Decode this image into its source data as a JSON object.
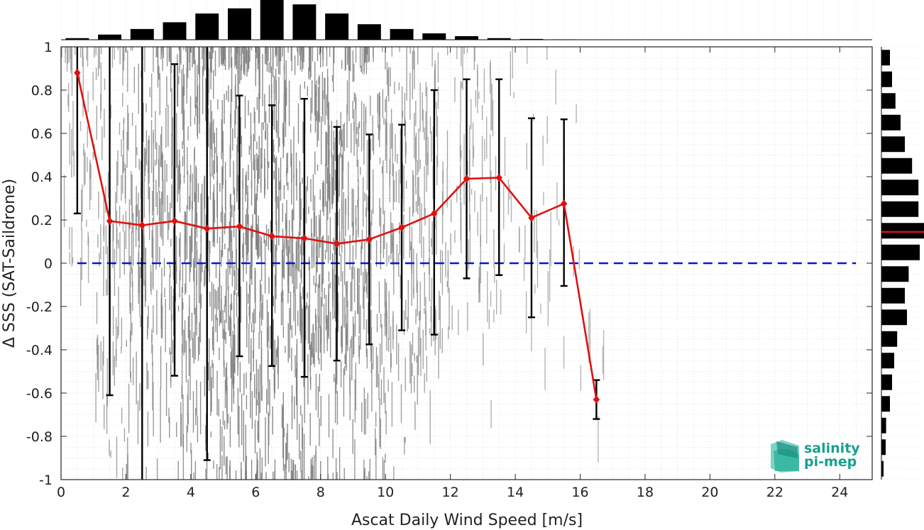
{
  "chart_data": {
    "type": "scatter",
    "xlabel": "Ascat Daily Wind Speed [m/s]",
    "ylabel": "Δ SSS (SAT-Saildrone)",
    "xlim": [
      0,
      25
    ],
    "ylim": [
      -1,
      1
    ],
    "xticks": [
      "0",
      "2",
      "4",
      "6",
      "8",
      "10",
      "12",
      "14",
      "16",
      "18",
      "20",
      "22",
      "24"
    ],
    "yticks": [
      "-1",
      "-0.8",
      "-0.6",
      "-0.4",
      "-0.2",
      "0",
      "0.2",
      "0.4",
      "0.6",
      "0.8",
      "1"
    ],
    "grid": true,
    "zero_line": {
      "y": 0,
      "color": "#0a14d6",
      "style": "dashed"
    },
    "series": [
      {
        "marker": "diamond",
        "color": "#e01010",
        "x": [
          0.5,
          1.5,
          2.5,
          3.5,
          4.5,
          5.5,
          6.5,
          7.5,
          8.5,
          9.5,
          10.5,
          11.5,
          12.5,
          13.5,
          14.5,
          15.5,
          16.5
        ],
        "mean": [
          0.88,
          0.195,
          0.175,
          0.195,
          0.16,
          0.17,
          0.125,
          0.115,
          0.09,
          0.11,
          0.165,
          0.23,
          0.39,
          0.395,
          0.21,
          0.275,
          -0.63
        ],
        "err_low": [
          0.23,
          -0.61,
          -1.0,
          -0.52,
          -0.91,
          -0.43,
          -0.475,
          -0.525,
          -0.45,
          -0.375,
          -0.31,
          -0.33,
          -0.07,
          -0.055,
          -0.25,
          -0.105,
          -0.72
        ],
        "err_high": [
          1.0,
          1.0,
          1.0,
          0.92,
          1.0,
          0.775,
          0.73,
          0.76,
          0.63,
          0.595,
          0.64,
          0.8,
          0.85,
          0.85,
          0.67,
          0.665,
          -0.54
        ]
      }
    ],
    "scatter_cloud": {
      "color": "#808080",
      "bins": [
        0.5,
        1.5,
        2.5,
        3.5,
        4.5,
        5.5,
        6.5,
        7.5,
        8.5,
        9.5,
        10.5,
        11.5,
        12.5,
        13.5,
        14.5,
        15.5,
        16.5
      ],
      "weights": [
        0.25,
        0.45,
        0.62,
        0.78,
        0.92,
        1.0,
        1.0,
        0.96,
        0.86,
        0.72,
        0.56,
        0.4,
        0.26,
        0.16,
        0.1,
        0.06,
        0.03
      ]
    },
    "top_histogram": {
      "color": "#000000",
      "x": [
        0.5,
        1.5,
        2.5,
        3.5,
        4.5,
        5.5,
        6.5,
        7.5,
        8.5,
        9.5,
        10.5,
        11.5,
        12.5,
        13.5,
        14.5,
        15.5,
        16.5
      ],
      "counts": [
        0.04,
        0.13,
        0.27,
        0.44,
        0.66,
        0.79,
        1.0,
        0.89,
        0.66,
        0.39,
        0.27,
        0.16,
        0.09,
        0.04,
        0.02,
        0.01,
        0.0
      ]
    },
    "right_histogram": {
      "color": "#000000",
      "mean_line_color": "#e01010",
      "mean_value": 0.145,
      "bin_centers": [
        -0.95,
        -0.85,
        -0.75,
        -0.65,
        -0.55,
        -0.45,
        -0.35,
        -0.25,
        -0.15,
        -0.05,
        0.05,
        0.15,
        0.25,
        0.35,
        0.45,
        0.55,
        0.65,
        0.75,
        0.85,
        0.95
      ],
      "counts": [
        0.05,
        0.1,
        0.11,
        0.2,
        0.25,
        0.3,
        0.37,
        0.6,
        0.55,
        0.64,
        0.9,
        1.0,
        0.87,
        0.87,
        0.72,
        0.55,
        0.45,
        0.33,
        0.25,
        0.2
      ]
    }
  },
  "logo": {
    "line1": "salinity",
    "line2": "pi-mep"
  }
}
